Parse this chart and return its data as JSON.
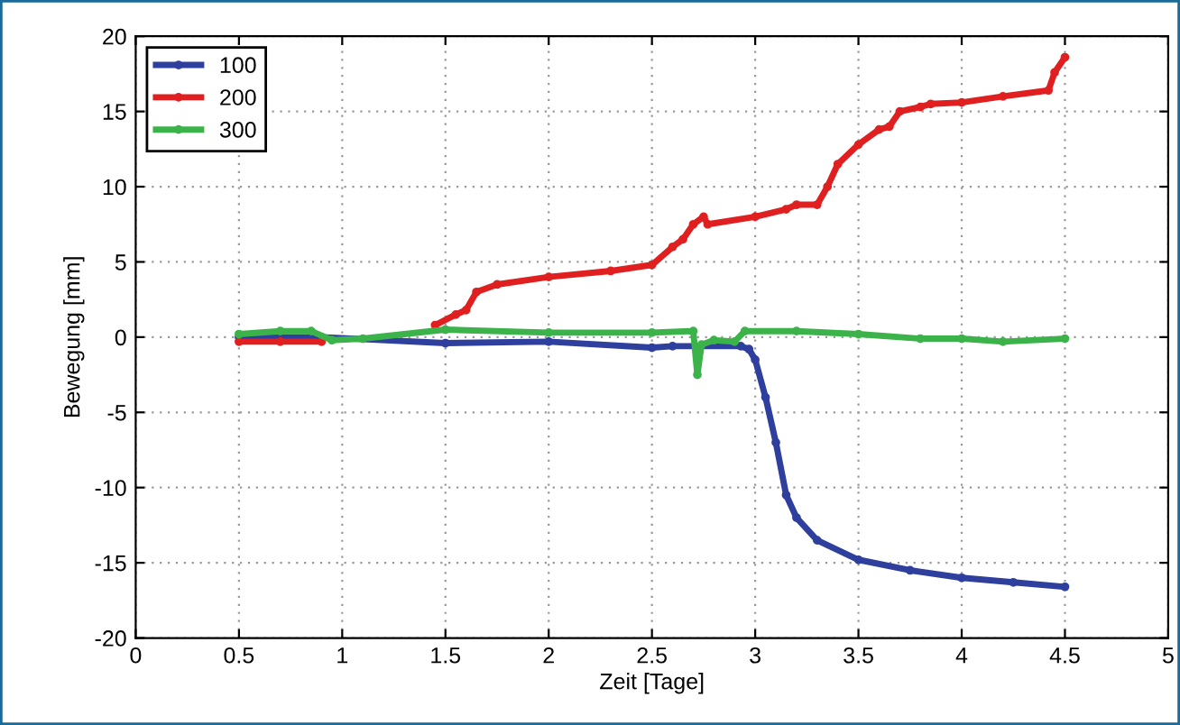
{
  "chart_data": {
    "type": "line",
    "xlabel": "Zeit [Tage]",
    "ylabel": "Bewegung [mm]",
    "xlim": [
      0,
      5
    ],
    "xticks": [
      0,
      0.5,
      1,
      1.5,
      2,
      2.5,
      3,
      3.5,
      4,
      4.5,
      5
    ],
    "ylim": [
      -20,
      20
    ],
    "yticks": [
      -20,
      -15,
      -10,
      -5,
      0,
      5,
      10,
      15,
      20
    ],
    "grid": true,
    "legend": "top left",
    "marker": "circle",
    "line_style": "solid",
    "series": [
      {
        "name": "100",
        "color": "#2e3f9e",
        "x": [
          0.5,
          0.9,
          1.5,
          2.0,
          2.5,
          2.6,
          2.93,
          2.97,
          3.0,
          3.05,
          3.1,
          3.15,
          3.2,
          3.3,
          3.5,
          3.75,
          4.0,
          4.25,
          4.5
        ],
        "values": [
          0,
          0,
          -0.4,
          -0.3,
          -0.7,
          -0.6,
          -0.6,
          -0.8,
          -1.5,
          -4,
          -7,
          -10.5,
          -12,
          -13.5,
          -14.8,
          -15.5,
          -16.0,
          -16.3,
          -16.6
        ]
      },
      {
        "name": "200",
        "color": "#e02020",
        "x": [
          0.5,
          0.7,
          0.9,
          1.2,
          1.45,
          1.55,
          1.6,
          1.65,
          1.75,
          2.0,
          2.3,
          2.5,
          2.6,
          2.65,
          2.7,
          2.75,
          2.77,
          3.0,
          3.15,
          3.2,
          3.3,
          3.35,
          3.4,
          3.5,
          3.6,
          3.65,
          3.7,
          3.8,
          3.85,
          4.0,
          4.2,
          4.42,
          4.45,
          4.5
        ],
        "values": [
          -0.3,
          -0.3,
          -0.3,
          null,
          0.8,
          1.5,
          1.8,
          3.0,
          3.5,
          4.0,
          4.4,
          4.8,
          6.0,
          6.5,
          7.5,
          8.0,
          7.5,
          8.0,
          8.5,
          8.8,
          8.8,
          10.0,
          11.5,
          12.8,
          13.8,
          14.0,
          15.0,
          15.3,
          15.5,
          15.6,
          16.0,
          16.4,
          17.6,
          18.6
        ]
      },
      {
        "name": "300",
        "color": "#3cb34a",
        "x": [
          0.5,
          0.7,
          0.85,
          0.95,
          1.1,
          1.5,
          2.0,
          2.5,
          2.7,
          2.72,
          2.74,
          2.8,
          2.9,
          2.95,
          3.2,
          3.5,
          3.8,
          4.0,
          4.2,
          4.5
        ],
        "values": [
          0.2,
          0.4,
          0.4,
          -0.2,
          -0.1,
          0.5,
          0.3,
          0.3,
          0.4,
          -2.5,
          -0.5,
          -0.2,
          -0.3,
          0.4,
          0.4,
          0.2,
          -0.1,
          -0.1,
          -0.3,
          -0.1
        ]
      }
    ]
  }
}
